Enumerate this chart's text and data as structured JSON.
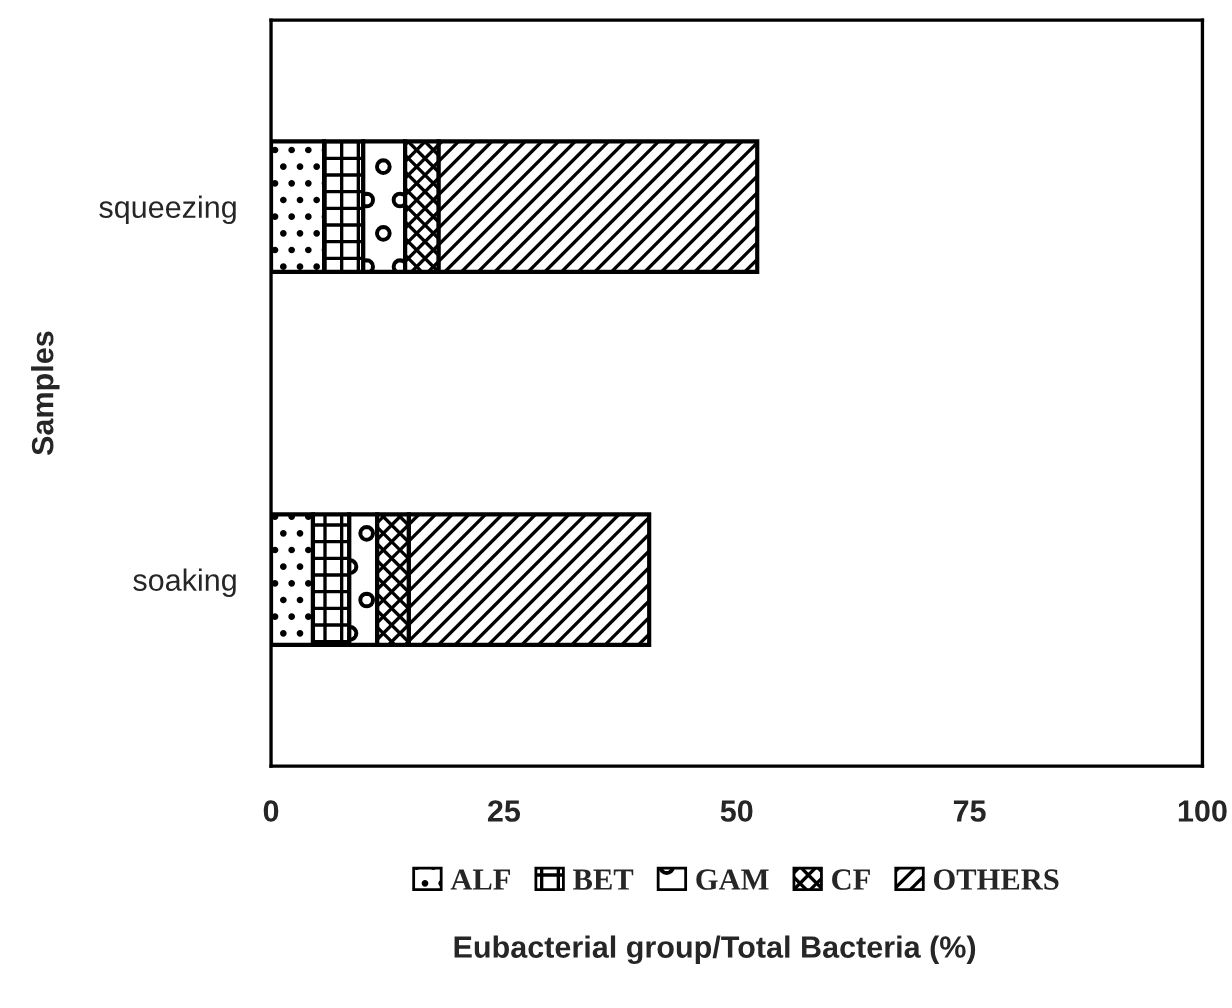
{
  "chart_data": {
    "type": "bar",
    "orientation": "horizontal",
    "stacked": true,
    "categories": [
      "squeezing",
      "soaking"
    ],
    "series": [
      {
        "name": "ALF",
        "color": "#000000",
        "values": [
          5.7,
          4.5
        ]
      },
      {
        "name": "BET",
        "color": "#000000",
        "values": [
          4.2,
          3.9
        ]
      },
      {
        "name": "GAM",
        "color": "#000000",
        "values": [
          4.5,
          3.0
        ]
      },
      {
        "name": "CF",
        "color": "#000000",
        "values": [
          3.6,
          3.4
        ]
      },
      {
        "name": "OTHERS",
        "color": "#000000",
        "values": [
          34.2,
          25.8
        ]
      }
    ],
    "xlim": [
      0,
      100
    ],
    "xticks": [
      0,
      25,
      50,
      75,
      100
    ],
    "xlabel": "Eubacterial group/Total Bacteria (%)",
    "ylabel": "Samples",
    "legend": "bottom",
    "grid": false
  }
}
